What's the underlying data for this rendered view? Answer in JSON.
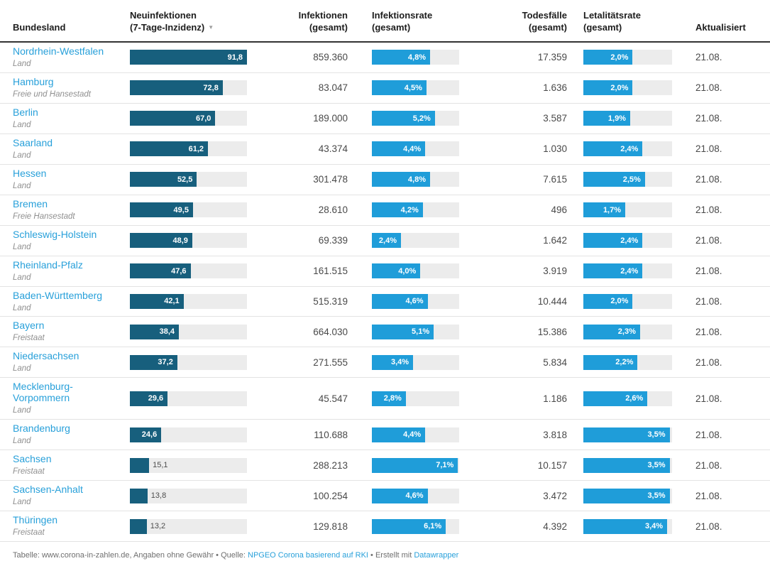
{
  "colors": {
    "bar_dark": "#175f7d",
    "bar_blue": "#1f9dd9",
    "bar_track": "#ececec",
    "link": "#28a0da",
    "header_text": "#1d1d1d",
    "body_text": "#494949",
    "muted_text": "#8f8f8f",
    "footer_text": "#6f6f6f"
  },
  "headers": {
    "bundesland": "Bundesland",
    "neuinfektionen_line1": "Neuinfektionen",
    "neuinfektionen_line2": "(7-Tage-Inzidenz)",
    "sort_indicator": "▼",
    "infektionen_line1": "Infektionen",
    "infektionen_line2": "(gesamt)",
    "infektionsrate_line1": "Infektionsrate",
    "infektionsrate_line2": "(gesamt)",
    "todesfaelle_line1": "Todesfälle",
    "todesfaelle_line2": "(gesamt)",
    "letalitaetsrate_line1": "Letalitätsrate",
    "letalitaetsrate_line2": "(gesamt)",
    "aktualisiert": "Aktualisiert"
  },
  "footer": {
    "prefix": "Tabelle: www.corona-in-zahlen.de, Angaben ohne Gewähr • Quelle: ",
    "source_link": "NPGEO Corona basierend auf RKI",
    "middle": " • Erstellt mit ",
    "creator_link": "Datawrapper"
  },
  "chart_data": {
    "type": "table",
    "columns": [
      "Bundesland",
      "Neuinfektionen (7-Tage-Inzidenz)",
      "Infektionen (gesamt)",
      "Infektionsrate (gesamt)",
      "Todesfälle (gesamt)",
      "Letalitätsrate (gesamt)",
      "Aktualisiert"
    ],
    "sorted_by": "Neuinfektionen (7-Tage-Inzidenz)",
    "sort_direction": "desc",
    "bar_axis_max": {
      "neuinfektionen": 91.8,
      "infektionsrate": 7.2,
      "letalitaetsrate": 3.6
    },
    "inside_label_min_percent": 20,
    "rows": [
      {
        "name": "Nordrhein-Westfalen",
        "type": "Land",
        "neuinfektionen": 91.8,
        "neuinfektionen_label": "91,8",
        "infektionen": "859.360",
        "infektionsrate": 4.8,
        "infektionsrate_label": "4,8%",
        "todesfaelle": "17.359",
        "letalitaetsrate": 2.0,
        "letalitaetsrate_label": "2,0%",
        "aktualisiert": "21.08."
      },
      {
        "name": "Hamburg",
        "type": "Freie und Hansestadt",
        "neuinfektionen": 72.8,
        "neuinfektionen_label": "72,8",
        "infektionen": "83.047",
        "infektionsrate": 4.5,
        "infektionsrate_label": "4,5%",
        "todesfaelle": "1.636",
        "letalitaetsrate": 2.0,
        "letalitaetsrate_label": "2,0%",
        "aktualisiert": "21.08."
      },
      {
        "name": "Berlin",
        "type": "Land",
        "neuinfektionen": 67.0,
        "neuinfektionen_label": "67,0",
        "infektionen": "189.000",
        "infektionsrate": 5.2,
        "infektionsrate_label": "5,2%",
        "todesfaelle": "3.587",
        "letalitaetsrate": 1.9,
        "letalitaetsrate_label": "1,9%",
        "aktualisiert": "21.08."
      },
      {
        "name": "Saarland",
        "type": "Land",
        "neuinfektionen": 61.2,
        "neuinfektionen_label": "61,2",
        "infektionen": "43.374",
        "infektionsrate": 4.4,
        "infektionsrate_label": "4,4%",
        "todesfaelle": "1.030",
        "letalitaetsrate": 2.4,
        "letalitaetsrate_label": "2,4%",
        "aktualisiert": "21.08."
      },
      {
        "name": "Hessen",
        "type": "Land",
        "neuinfektionen": 52.5,
        "neuinfektionen_label": "52,5",
        "infektionen": "301.478",
        "infektionsrate": 4.8,
        "infektionsrate_label": "4,8%",
        "todesfaelle": "7.615",
        "letalitaetsrate": 2.5,
        "letalitaetsrate_label": "2,5%",
        "aktualisiert": "21.08."
      },
      {
        "name": "Bremen",
        "type": "Freie Hansestadt",
        "neuinfektionen": 49.5,
        "neuinfektionen_label": "49,5",
        "infektionen": "28.610",
        "infektionsrate": 4.2,
        "infektionsrate_label": "4,2%",
        "todesfaelle": "496",
        "letalitaetsrate": 1.7,
        "letalitaetsrate_label": "1,7%",
        "aktualisiert": "21.08."
      },
      {
        "name": "Schleswig-Holstein",
        "type": "Land",
        "neuinfektionen": 48.9,
        "neuinfektionen_label": "48,9",
        "infektionen": "69.339",
        "infektionsrate": 2.4,
        "infektionsrate_label": "2,4%",
        "todesfaelle": "1.642",
        "letalitaetsrate": 2.4,
        "letalitaetsrate_label": "2,4%",
        "aktualisiert": "21.08."
      },
      {
        "name": "Rheinland-Pfalz",
        "type": "Land",
        "neuinfektionen": 47.6,
        "neuinfektionen_label": "47,6",
        "infektionen": "161.515",
        "infektionsrate": 4.0,
        "infektionsrate_label": "4,0%",
        "todesfaelle": "3.919",
        "letalitaetsrate": 2.4,
        "letalitaetsrate_label": "2,4%",
        "aktualisiert": "21.08."
      },
      {
        "name": "Baden-Württemberg",
        "type": "Land",
        "neuinfektionen": 42.1,
        "neuinfektionen_label": "42,1",
        "infektionen": "515.319",
        "infektionsrate": 4.6,
        "infektionsrate_label": "4,6%",
        "todesfaelle": "10.444",
        "letalitaetsrate": 2.0,
        "letalitaetsrate_label": "2,0%",
        "aktualisiert": "21.08."
      },
      {
        "name": "Bayern",
        "type": "Freistaat",
        "neuinfektionen": 38.4,
        "neuinfektionen_label": "38,4",
        "infektionen": "664.030",
        "infektionsrate": 5.1,
        "infektionsrate_label": "5,1%",
        "todesfaelle": "15.386",
        "letalitaetsrate": 2.3,
        "letalitaetsrate_label": "2,3%",
        "aktualisiert": "21.08."
      },
      {
        "name": "Niedersachsen",
        "type": "Land",
        "neuinfektionen": 37.2,
        "neuinfektionen_label": "37,2",
        "infektionen": "271.555",
        "infektionsrate": 3.4,
        "infektionsrate_label": "3,4%",
        "todesfaelle": "5.834",
        "letalitaetsrate": 2.2,
        "letalitaetsrate_label": "2,2%",
        "aktualisiert": "21.08."
      },
      {
        "name": "Mecklenburg-Vorpommern",
        "type": "Land",
        "neuinfektionen": 29.6,
        "neuinfektionen_label": "29,6",
        "infektionen": "45.547",
        "infektionsrate": 2.8,
        "infektionsrate_label": "2,8%",
        "todesfaelle": "1.186",
        "letalitaetsrate": 2.6,
        "letalitaetsrate_label": "2,6%",
        "aktualisiert": "21.08."
      },
      {
        "name": "Brandenburg",
        "type": "Land",
        "neuinfektionen": 24.6,
        "neuinfektionen_label": "24,6",
        "infektionen": "110.688",
        "infektionsrate": 4.4,
        "infektionsrate_label": "4,4%",
        "todesfaelle": "3.818",
        "letalitaetsrate": 3.5,
        "letalitaetsrate_label": "3,5%",
        "aktualisiert": "21.08."
      },
      {
        "name": "Sachsen",
        "type": "Freistaat",
        "neuinfektionen": 15.1,
        "neuinfektionen_label": "15,1",
        "infektionen": "288.213",
        "infektionsrate": 7.1,
        "infektionsrate_label": "7,1%",
        "todesfaelle": "10.157",
        "letalitaetsrate": 3.5,
        "letalitaetsrate_label": "3,5%",
        "aktualisiert": "21.08."
      },
      {
        "name": "Sachsen-Anhalt",
        "type": "Land",
        "neuinfektionen": 13.8,
        "neuinfektionen_label": "13,8",
        "infektionen": "100.254",
        "infektionsrate": 4.6,
        "infektionsrate_label": "4,6%",
        "todesfaelle": "3.472",
        "letalitaetsrate": 3.5,
        "letalitaetsrate_label": "3,5%",
        "aktualisiert": "21.08."
      },
      {
        "name": "Thüringen",
        "type": "Freistaat",
        "neuinfektionen": 13.2,
        "neuinfektionen_label": "13,2",
        "infektionen": "129.818",
        "infektionsrate": 6.1,
        "infektionsrate_label": "6,1%",
        "todesfaelle": "4.392",
        "letalitaetsrate": 3.4,
        "letalitaetsrate_label": "3,4%",
        "aktualisiert": "21.08."
      }
    ]
  }
}
